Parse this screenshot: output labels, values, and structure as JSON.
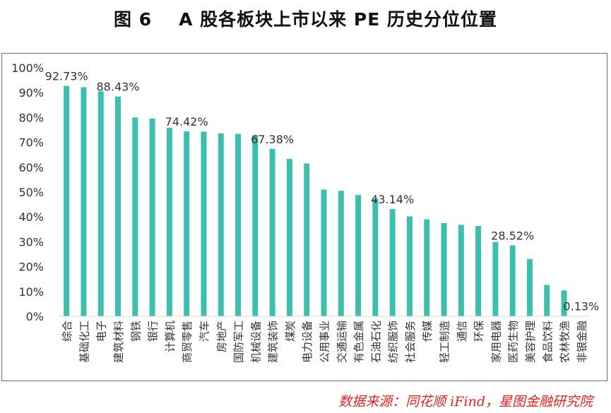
{
  "title": {
    "figure": "图 6",
    "text": "A 股各板块上市以来 PE 历史分位位置"
  },
  "source": "数据来源：同花顺 iFind，星图金融研究院",
  "colors": {
    "bar": "#3cbfae",
    "axis": "#d9d9d9",
    "text": "#333333",
    "source": "#e8231e"
  },
  "chart_data": {
    "type": "bar",
    "title": "A 股各板块上市以来 PE 历史分位位置",
    "xlabel": "",
    "ylabel": "",
    "ylim": [
      0,
      100
    ],
    "yticks": [
      "0%",
      "10%",
      "20%",
      "30%",
      "40%",
      "50%",
      "60%",
      "70%",
      "80%",
      "90%",
      "100%"
    ],
    "grid": false,
    "categories": [
      "综合",
      "基础化工",
      "电子",
      "建筑材料",
      "钢铁",
      "银行",
      "计算机",
      "商贸零售",
      "汽车",
      "房地产",
      "国防军工",
      "机械设备",
      "建筑装饰",
      "煤炭",
      "电力设备",
      "公用事业",
      "交通运输",
      "有色金属",
      "石油石化",
      "纺织服饰",
      "社会服务",
      "传媒",
      "轻工制造",
      "通信",
      "环保",
      "家用电器",
      "医药生物",
      "美容护理",
      "食品饮料",
      "农林牧渔",
      "非银金融"
    ],
    "values": [
      92.73,
      92.2,
      90.5,
      88.43,
      80.0,
      79.6,
      75.8,
      74.42,
      74.3,
      73.6,
      73.4,
      72.9,
      67.38,
      63.3,
      61.5,
      51.0,
      50.5,
      48.8,
      47.4,
      43.14,
      40.2,
      39.0,
      37.5,
      36.8,
      36.4,
      29.9,
      28.52,
      23.0,
      12.6,
      10.4,
      0.13
    ],
    "data_labels": [
      {
        "index": 0,
        "text": "92.73%"
      },
      {
        "index": 3,
        "text": "88.43%"
      },
      {
        "index": 7,
        "text": "74.42%"
      },
      {
        "index": 12,
        "text": "67.38%"
      },
      {
        "index": 19,
        "text": "43.14%"
      },
      {
        "index": 26,
        "text": "28.52%"
      },
      {
        "index": 30,
        "text": "0.13%"
      }
    ]
  }
}
